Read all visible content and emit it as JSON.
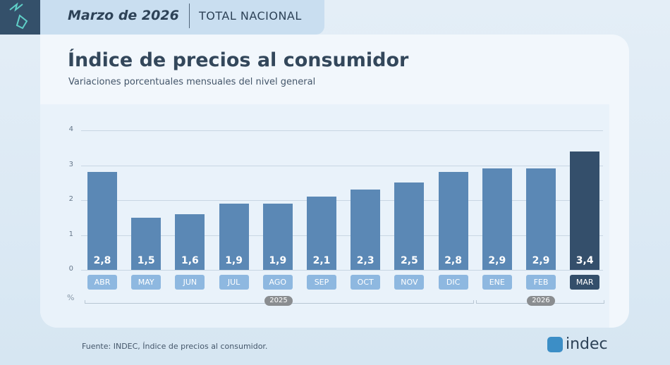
{
  "header": {
    "date": "Marzo de 2026",
    "scope": "TOTAL NACIONAL"
  },
  "chart_data": {
    "type": "bar",
    "title": "Índice de precios al consumidor",
    "subtitle": "Variaciones porcentuales mensuales del nivel general",
    "ylabel": "%",
    "ylim": [
      0,
      4
    ],
    "yticks": [
      "0",
      "1",
      "2",
      "3",
      "4"
    ],
    "grid": true,
    "categories": [
      "ABR",
      "MAY",
      "JUN",
      "JUL",
      "AGO",
      "SEP",
      "OCT",
      "NOV",
      "DIC",
      "ENE",
      "FEB",
      "MAR"
    ],
    "values": [
      2.8,
      1.5,
      1.6,
      1.9,
      1.9,
      2.1,
      2.3,
      2.5,
      2.8,
      2.9,
      2.9,
      3.4
    ],
    "value_labels": [
      "2,8",
      "1,5",
      "1,6",
      "1,9",
      "1,9",
      "2,1",
      "2,3",
      "2,5",
      "2,8",
      "2,9",
      "2,9",
      "3,4"
    ],
    "year_groups": [
      "2025",
      "2026"
    ],
    "highlight": "MAR",
    "colors": {
      "bar": "#5b88b5",
      "highlight": "#344f6b",
      "category": "#8eb8e0"
    }
  },
  "footer": {
    "source": "Fuente: INDEC, Índice de precios al consumidor.",
    "brand": "indec"
  }
}
